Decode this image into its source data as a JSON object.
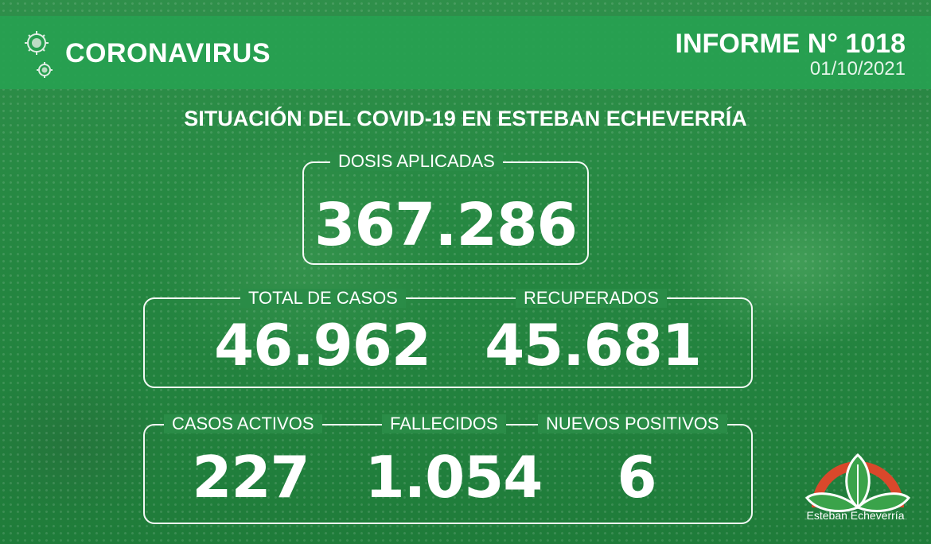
{
  "header": {
    "brand": "CORONAVIRUS",
    "report_number": "INFORME N° 1018",
    "report_date": "01/10/2021"
  },
  "title": "SITUACIÓN DEL COVID-19 EN ESTEBAN ECHEVERRÍA",
  "stats": {
    "doses_label": "DOSIS APLICADAS",
    "doses_value": "367.286",
    "total_cases_label": "TOTAL DE CASOS",
    "total_cases_value": "46.962",
    "recovered_label": "RECUPERADOS",
    "recovered_value": "45.681",
    "active_label": "CASOS ACTIVOS",
    "active_value": "227",
    "deaths_label": "FALLECIDOS",
    "deaths_value": "1.054",
    "new_label": "NUEVOS POSITIVOS",
    "new_value": "6"
  },
  "logo": {
    "text": "Esteban Echeverría",
    "colors": {
      "arc": "#d9482b",
      "leaf": "#3aa34a",
      "dark_leaf": "#1e7a35"
    }
  },
  "icons": [
    "virus-icon",
    "logo-leaf-icon"
  ],
  "colors": {
    "header_band": "#27a151",
    "background": "#268842"
  }
}
